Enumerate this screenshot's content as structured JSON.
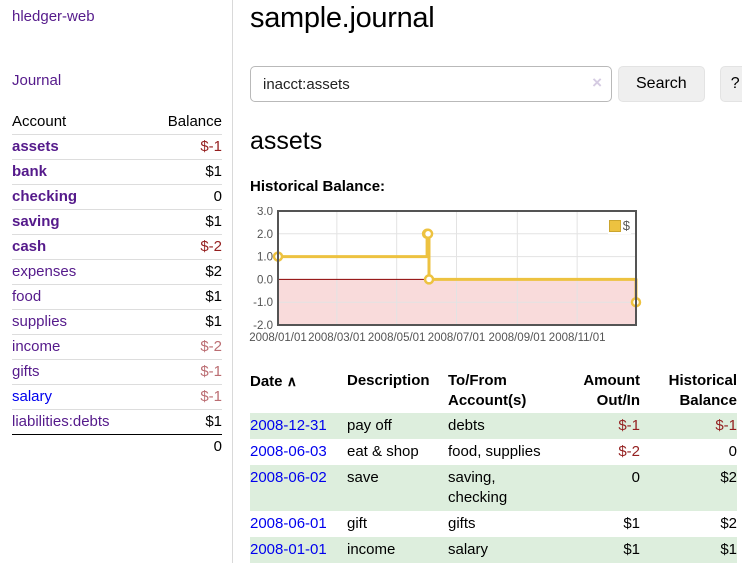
{
  "sidebar": {
    "app_title": "hledger-web",
    "journal_link": "Journal",
    "accounts_table": {
      "headers": {
        "account": "Account",
        "balance": "Balance"
      },
      "rows": [
        {
          "name": "assets",
          "balance": "$-1"
        },
        {
          "name": "bank",
          "balance": "$1"
        },
        {
          "name": "checking",
          "balance": "0"
        },
        {
          "name": "saving",
          "balance": "$1"
        },
        {
          "name": "cash",
          "balance": "$-2"
        },
        {
          "name": "expenses",
          "balance": "$2"
        },
        {
          "name": "food",
          "balance": "$1"
        },
        {
          "name": "supplies",
          "balance": "$1"
        },
        {
          "name": "income",
          "balance": "$-2"
        },
        {
          "name": "gifts",
          "balance": "$-1"
        },
        {
          "name": "salary",
          "balance": "$-1"
        },
        {
          "name": "liabilities:debts",
          "balance": "$1"
        }
      ],
      "total": "0"
    }
  },
  "main": {
    "title": "sample.journal",
    "search": {
      "value": "inacct:assets",
      "clear_icon": "×",
      "search_button": "Search",
      "help_button": "?"
    },
    "account_heading": "assets",
    "chart_label": "Historical Balance:"
  },
  "chart_data": {
    "type": "line",
    "title": "Historical Balance",
    "step": "after",
    "x_range": [
      "2008-01-01",
      "2008-12-31"
    ],
    "ylim": [
      -2,
      3
    ],
    "series": [
      {
        "name": "$",
        "color": "#edc240",
        "points": [
          [
            "2008-01-01",
            1
          ],
          [
            "2008-06-01",
            2
          ],
          [
            "2008-06-02",
            2
          ],
          [
            "2008-06-03",
            0
          ],
          [
            "2008-12-31",
            -1
          ]
        ]
      }
    ],
    "yticks": [
      {
        "v": 3,
        "label": "3.0"
      },
      {
        "v": 2,
        "label": "2.0"
      },
      {
        "v": 1,
        "label": "1.0"
      },
      {
        "v": 0,
        "label": "0.0"
      },
      {
        "v": -1,
        "label": "-1.0"
      },
      {
        "v": -2,
        "label": "-2.0"
      }
    ],
    "xticks": [
      {
        "date": "2008-01-01",
        "label": "2008/01/01"
      },
      {
        "date": "2008-03-01",
        "label": "2008/03/01"
      },
      {
        "date": "2008-05-01",
        "label": "2008/05/01"
      },
      {
        "date": "2008-07-01",
        "label": "2008/07/01"
      },
      {
        "date": "2008-09-01",
        "label": "2008/09/01"
      },
      {
        "date": "2008-11-01",
        "label": "2008/11/01"
      }
    ],
    "legend_position": "top-right",
    "grid": true,
    "colors": {
      "series": "#edc240",
      "negative_region": "#f9dbdb",
      "zero_line": "#8b0000",
      "grid_line": "#e3e3e3",
      "border": "#545454",
      "tick_text": "#545454"
    }
  },
  "register_table": {
    "headers": {
      "date": "Date",
      "sort_icon": "∧",
      "description": "Description",
      "tofrom_1": "To/From",
      "tofrom_2": "Account(s)",
      "amount_1": "Amount",
      "amount_2": "Out/In",
      "balance_1": "Historical",
      "balance_2": "Balance"
    },
    "rows": [
      {
        "date": "2008-12-31",
        "description": "pay off",
        "accounts": "debts",
        "amount": "$-1",
        "balance": "$-1"
      },
      {
        "date": "2008-06-03",
        "description": "eat & shop",
        "accounts": "food, supplies",
        "amount": "$-2",
        "balance": "0"
      },
      {
        "date": "2008-06-02",
        "description": "save",
        "accounts": "saving,\nchecking",
        "amount": "0",
        "balance": "$2"
      },
      {
        "date": "2008-06-01",
        "description": "gift",
        "accounts": "gifts",
        "amount": "$1",
        "balance": "$2"
      },
      {
        "date": "2008-01-01",
        "description": "income",
        "accounts": "salary",
        "amount": "$1",
        "balance": "$1"
      }
    ]
  }
}
